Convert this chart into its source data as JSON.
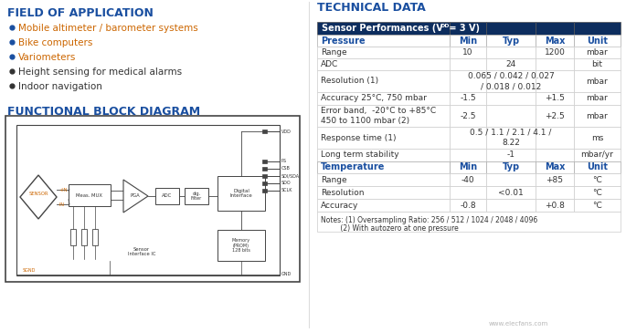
{
  "title_left1": "FIELD OF APPLICATION",
  "title_left2": "FUNCTIONAL BLOCK DIAGRAM",
  "title_right": "TECHNICAL DATA",
  "bullets": [
    "Mobile altimeter / barometer systems",
    "Bike computers",
    "Variometers",
    "Height sensing for medical alarms",
    "Indoor navigation"
  ],
  "bullet_colors_dot": [
    "#1a4fa0",
    "#1a4fa0",
    "#1a4fa0",
    "#333333",
    "#333333"
  ],
  "bullet_colors_text": [
    "#cc6600",
    "#cc6600",
    "#cc6600",
    "#333333",
    "#333333"
  ],
  "header_bg": "#0d2d5e",
  "header_text": "#ffffff",
  "subheader_text": "#1a4fa0",
  "title_color": "#1a4fa0",
  "bg_color": "#ffffff",
  "watermark": "www.elecfans.com",
  "pressure_rows": [
    [
      "Range",
      "10",
      "",
      "1200",
      "mbar",
      13
    ],
    [
      "ADC",
      "",
      "24",
      "",
      "bit",
      13
    ],
    [
      "Resolution (1)",
      "",
      "0.065 / 0.042 / 0.027\n/ 0.018 / 0.012",
      "",
      "mbar",
      24
    ],
    [
      "Accuracy 25°C, 750 mbar",
      "-1.5",
      "",
      "+1.5",
      "mbar",
      14
    ],
    [
      "Error band,  -20°C to +85°C\n450 to 1100 mbar (2)",
      "-2.5",
      "",
      "+2.5",
      "mbar",
      24
    ],
    [
      "Response time (1)",
      "",
      "0.5 / 1.1 / 2.1 / 4.1 /\n8.22",
      "",
      "ms",
      24
    ],
    [
      "Long term stability",
      "",
      "-1",
      "",
      "mbar/yr",
      14
    ]
  ],
  "temp_rows": [
    [
      "Range",
      "-40",
      "",
      "+85",
      "°C",
      14
    ],
    [
      "Resolution",
      "",
      "<0.01",
      "",
      "°C",
      14
    ],
    [
      "Accuracy",
      "-0.8",
      "",
      "+0.8",
      "°C",
      14
    ]
  ]
}
